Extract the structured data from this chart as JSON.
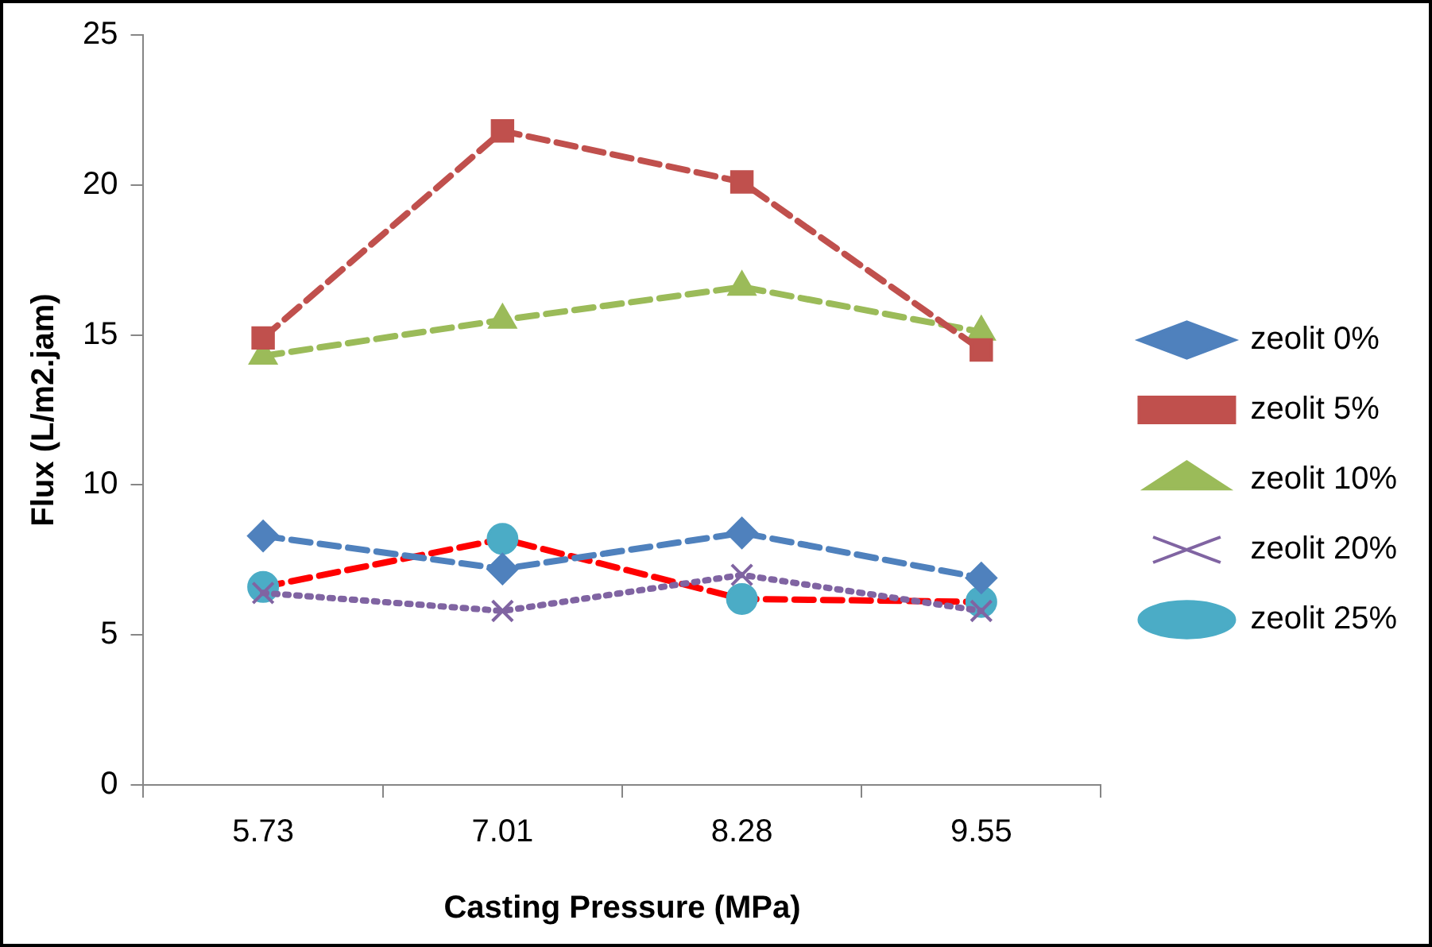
{
  "chart_data": {
    "type": "line",
    "xlabel": "Casting Pressure (MPa)",
    "ylabel": "Flux (L/m2.jam)",
    "categories": [
      "5.73",
      "7.01",
      "8.28",
      "9.55"
    ],
    "series": [
      {
        "name": "zeolit 0%",
        "color": "#4f81bd",
        "values": [
          8.3,
          7.2,
          8.4,
          6.9
        ],
        "marker": "diamond",
        "line_style": "dashed"
      },
      {
        "name": "zeolit 5%",
        "color": "#c0504d",
        "values": [
          14.9,
          21.8,
          20.1,
          14.5
        ],
        "marker": "square",
        "line_style": "dashed"
      },
      {
        "name": "zeolit 10%",
        "color": "#9bbb59",
        "values": [
          14.3,
          15.5,
          16.6,
          15.1
        ],
        "marker": "triangle",
        "line_style": "dashed"
      },
      {
        "name": "zeolit 20%",
        "color": "#8064a2",
        "values": [
          6.4,
          5.8,
          7.0,
          5.8
        ],
        "marker": "cross",
        "line_style": "dotted"
      },
      {
        "name": "zeolit 25%",
        "color": "#ff0000",
        "colors": [
          "#4bacc6",
          "#4bacc6",
          "#4bacc6",
          "#4bacc6"
        ],
        "values": [
          6.6,
          8.2,
          6.2,
          6.1
        ],
        "marker": "circle",
        "line_style": "dashed"
      }
    ],
    "ylim": [
      0,
      25
    ],
    "yticks": [
      0,
      5,
      10,
      15,
      20,
      25
    ],
    "grid": false,
    "legend": "right"
  }
}
